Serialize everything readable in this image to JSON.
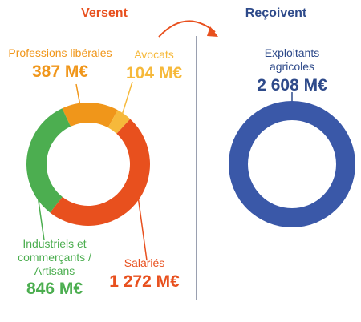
{
  "chart_data": [
    {
      "type": "pie",
      "title": "Versent",
      "categories": [
        "Professions libérales",
        "Avocats",
        "Salariés",
        "Industriels et commerçants / Artisans"
      ],
      "values": [
        387,
        104,
        1272,
        846
      ],
      "value_labels": [
        "387 M€",
        "104 M€",
        "1 272 M€",
        "846 M€"
      ],
      "colors": [
        "#f0961a",
        "#f6b93b",
        "#e8501e",
        "#4cae50"
      ]
    },
    {
      "type": "pie",
      "title": "Reçoivent",
      "categories": [
        "Exploitants agricoles"
      ],
      "values": [
        2608
      ],
      "value_labels": [
        "2 608 M€"
      ],
      "colors": [
        "#3a58a8"
      ]
    }
  ]
}
